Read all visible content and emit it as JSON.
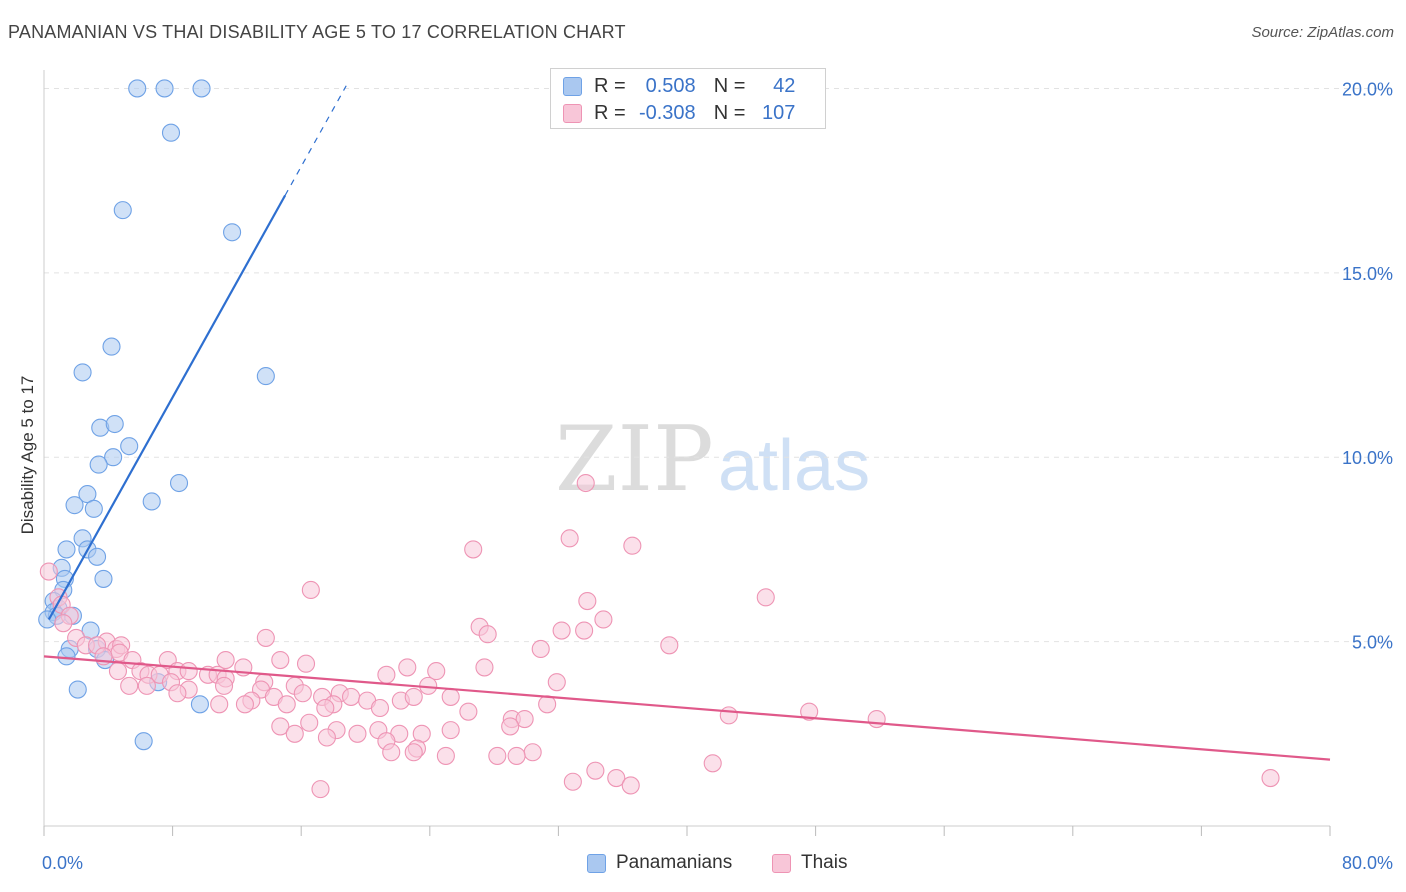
{
  "chart_data": {
    "type": "scatter",
    "title": "PANAMANIAN VS THAI DISABILITY AGE 5 TO 17 CORRELATION CHART",
    "source": "Source: ZipAtlas.com",
    "xlabel": "",
    "ylabel": "Disability Age 5 to 17",
    "xlim": [
      0,
      80
    ],
    "ylim": [
      0,
      20.5
    ],
    "x_tick_labels": [
      "0.0%",
      "80.0%"
    ],
    "y_ticks": [
      5,
      10,
      15,
      20
    ],
    "y_tick_labels": [
      "5.0%",
      "10.0%",
      "15.0%",
      "20.0%"
    ],
    "grid": true,
    "watermark": {
      "zip": "ZIP",
      "atlas": "atlas"
    },
    "legend": {
      "placement": "top-center",
      "rows": [
        {
          "r_label": "R =",
          "r_value": "0.508",
          "n_label": "N =",
          "n_value": "42"
        },
        {
          "r_label": "R =",
          "r_value": "-0.308",
          "n_label": "N =",
          "n_value": "107"
        }
      ]
    },
    "series": [
      {
        "name": "Panamanians",
        "color": "#6fa2e6",
        "fill": "#aac8f0",
        "line_color": "#2e6fd0",
        "trend": {
          "x0": 0.3,
          "y0": 5.6,
          "x1": 15.0,
          "y1": 17.1,
          "dash_to_x": 18.8
        },
        "points": [
          [
            5.8,
            20.0
          ],
          [
            7.5,
            20.0
          ],
          [
            9.8,
            20.0
          ],
          [
            7.9,
            18.8
          ],
          [
            4.9,
            16.7
          ],
          [
            11.7,
            16.1
          ],
          [
            4.2,
            13.0
          ],
          [
            2.4,
            12.3
          ],
          [
            13.8,
            12.2
          ],
          [
            3.5,
            10.8
          ],
          [
            4.4,
            10.9
          ],
          [
            5.3,
            10.3
          ],
          [
            4.3,
            10.0
          ],
          [
            3.4,
            9.8
          ],
          [
            8.4,
            9.3
          ],
          [
            2.7,
            9.0
          ],
          [
            1.9,
            8.7
          ],
          [
            3.1,
            8.6
          ],
          [
            6.7,
            8.8
          ],
          [
            2.4,
            7.8
          ],
          [
            1.4,
            7.5
          ],
          [
            2.7,
            7.5
          ],
          [
            3.3,
            7.3
          ],
          [
            1.1,
            7.0
          ],
          [
            1.3,
            6.7
          ],
          [
            3.7,
            6.7
          ],
          [
            1.2,
            6.4
          ],
          [
            0.6,
            6.1
          ],
          [
            0.9,
            5.9
          ],
          [
            0.6,
            5.8
          ],
          [
            0.8,
            5.7
          ],
          [
            0.2,
            5.6
          ],
          [
            1.8,
            5.7
          ],
          [
            2.9,
            5.3
          ],
          [
            3.3,
            4.8
          ],
          [
            1.6,
            4.8
          ],
          [
            1.4,
            4.6
          ],
          [
            3.8,
            4.5
          ],
          [
            7.1,
            3.9
          ],
          [
            2.1,
            3.7
          ],
          [
            9.7,
            3.3
          ],
          [
            6.2,
            2.3
          ]
        ]
      },
      {
        "name": "Thais",
        "color": "#ee94b4",
        "fill": "#f8c6d8",
        "line_color": "#e0598a",
        "trend": {
          "x0": 0,
          "y0": 4.6,
          "x1": 80,
          "y1": 1.8
        },
        "points": [
          [
            33.7,
            9.3
          ],
          [
            32.7,
            7.8
          ],
          [
            36.6,
            7.6
          ],
          [
            26.7,
            7.5
          ],
          [
            0.3,
            6.9
          ],
          [
            16.6,
            6.4
          ],
          [
            0.9,
            6.2
          ],
          [
            1.1,
            6.0
          ],
          [
            33.8,
            6.1
          ],
          [
            44.9,
            6.2
          ],
          [
            1.6,
            5.7
          ],
          [
            1.2,
            5.5
          ],
          [
            34.8,
            5.6
          ],
          [
            32.2,
            5.3
          ],
          [
            33.6,
            5.3
          ],
          [
            27.1,
            5.4
          ],
          [
            27.6,
            5.2
          ],
          [
            2.0,
            5.1
          ],
          [
            13.8,
            5.1
          ],
          [
            38.9,
            4.9
          ],
          [
            3.9,
            5.0
          ],
          [
            2.6,
            4.9
          ],
          [
            3.3,
            4.9
          ],
          [
            4.5,
            4.8
          ],
          [
            4.8,
            4.9
          ],
          [
            30.9,
            4.8
          ],
          [
            4.7,
            4.7
          ],
          [
            3.7,
            4.6
          ],
          [
            5.5,
            4.5
          ],
          [
            7.7,
            4.5
          ],
          [
            11.3,
            4.5
          ],
          [
            14.7,
            4.5
          ],
          [
            16.3,
            4.4
          ],
          [
            22.6,
            4.3
          ],
          [
            8.3,
            4.2
          ],
          [
            9.0,
            4.2
          ],
          [
            6.0,
            4.2
          ],
          [
            6.5,
            4.1
          ],
          [
            10.2,
            4.1
          ],
          [
            12.4,
            4.3
          ],
          [
            24.4,
            4.2
          ],
          [
            27.4,
            4.3
          ],
          [
            4.6,
            4.2
          ],
          [
            7.2,
            4.1
          ],
          [
            10.8,
            4.1
          ],
          [
            11.3,
            4.0
          ],
          [
            21.3,
            4.1
          ],
          [
            13.7,
            3.9
          ],
          [
            15.6,
            3.8
          ],
          [
            23.9,
            3.8
          ],
          [
            31.9,
            3.9
          ],
          [
            7.9,
            3.9
          ],
          [
            5.3,
            3.8
          ],
          [
            6.4,
            3.8
          ],
          [
            9.0,
            3.7
          ],
          [
            11.2,
            3.8
          ],
          [
            13.5,
            3.7
          ],
          [
            16.1,
            3.6
          ],
          [
            17.3,
            3.5
          ],
          [
            18.4,
            3.6
          ],
          [
            19.1,
            3.5
          ],
          [
            22.2,
            3.4
          ],
          [
            23.0,
            3.5
          ],
          [
            8.3,
            3.6
          ],
          [
            12.9,
            3.4
          ],
          [
            14.3,
            3.5
          ],
          [
            18.0,
            3.3
          ],
          [
            20.1,
            3.4
          ],
          [
            25.3,
            3.5
          ],
          [
            31.3,
            3.3
          ],
          [
            10.9,
            3.3
          ],
          [
            12.5,
            3.3
          ],
          [
            15.1,
            3.3
          ],
          [
            17.5,
            3.2
          ],
          [
            20.9,
            3.2
          ],
          [
            26.4,
            3.1
          ],
          [
            29.1,
            2.9
          ],
          [
            29.9,
            2.9
          ],
          [
            42.6,
            3.0
          ],
          [
            47.6,
            3.1
          ],
          [
            51.8,
            2.9
          ],
          [
            14.7,
            2.7
          ],
          [
            16.5,
            2.8
          ],
          [
            18.2,
            2.6
          ],
          [
            19.5,
            2.5
          ],
          [
            20.8,
            2.6
          ],
          [
            22.1,
            2.5
          ],
          [
            23.5,
            2.5
          ],
          [
            25.3,
            2.6
          ],
          [
            29.0,
            2.7
          ],
          [
            15.6,
            2.5
          ],
          [
            17.6,
            2.4
          ],
          [
            21.3,
            2.3
          ],
          [
            23.2,
            2.1
          ],
          [
            21.6,
            2.0
          ],
          [
            25.0,
            1.9
          ],
          [
            23.0,
            2.0
          ],
          [
            30.4,
            2.0
          ],
          [
            29.4,
            1.9
          ],
          [
            28.2,
            1.9
          ],
          [
            41.6,
            1.7
          ],
          [
            34.3,
            1.5
          ],
          [
            35.6,
            1.3
          ],
          [
            36.5,
            1.1
          ],
          [
            76.3,
            1.3
          ],
          [
            17.2,
            1.0
          ],
          [
            32.9,
            1.2
          ]
        ]
      }
    ]
  }
}
